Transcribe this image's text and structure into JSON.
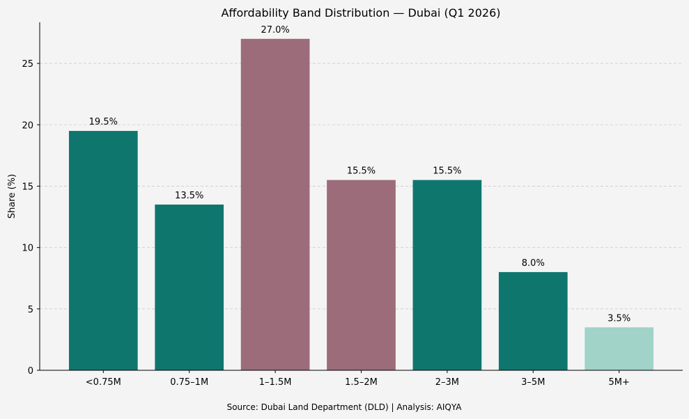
{
  "chart_data": {
    "type": "bar",
    "title": "Affordability Band Distribution — Dubai (Q1 2026)",
    "xlabel": "",
    "ylabel": "Share (%)",
    "categories": [
      "<0.75M",
      "0.75–1M",
      "1–1.5M",
      "1.5–2M",
      "2–3M",
      "3–5M",
      "5M+"
    ],
    "values": [
      19.5,
      13.5,
      27.0,
      15.5,
      15.5,
      8.0,
      3.5
    ],
    "data_labels": [
      "19.5%",
      "13.5%",
      "27.0%",
      "15.5%",
      "15.5%",
      "8.0%",
      "3.5%"
    ],
    "bar_colors": [
      "#0f766e",
      "#0f766e",
      "#9c6c7b",
      "#9c6c7b",
      "#0f766e",
      "#0f766e",
      "#a1d3c8"
    ],
    "ylim": [
      0,
      28.35
    ],
    "yticks": [
      0,
      5,
      10,
      15,
      20,
      25
    ],
    "grid": "y-dashed",
    "legend": "none"
  },
  "footer": "Source: Dubai Land Department (DLD) | Analysis: AIQYA"
}
